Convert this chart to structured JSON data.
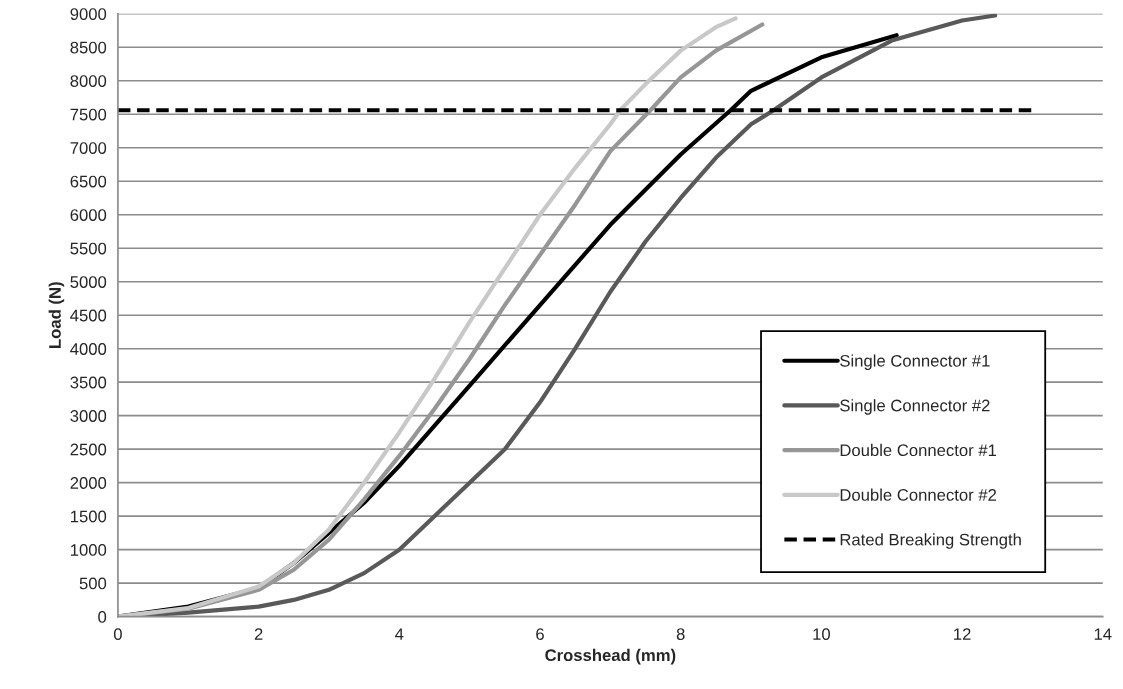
{
  "chart_data": {
    "type": "line",
    "xlabel": "Crosshead (mm)",
    "ylabel": "Load (N)",
    "xlim": [
      0,
      14
    ],
    "xticks": [
      0,
      2,
      4,
      6,
      8,
      10,
      12,
      14
    ],
    "ylim": [
      0,
      9000
    ],
    "yticks": [
      0,
      500,
      1000,
      1500,
      2000,
      2500,
      3000,
      3500,
      4000,
      4500,
      5000,
      5500,
      6000,
      6500,
      7000,
      7500,
      8000,
      8500,
      9000
    ],
    "grid": "y",
    "legend": "bottom right",
    "line_style": "solid",
    "marker": "none",
    "series": [
      {
        "name": "Single Connector #1",
        "color": "#000000",
        "x": [
          0,
          1,
          2,
          2.5,
          3,
          3.5,
          4,
          5,
          6,
          7,
          8,
          8.71,
          9,
          10,
          11.07
        ],
        "values": [
          0,
          150,
          430,
          800,
          1250,
          1700,
          2250,
          3450,
          4650,
          5850,
          6900,
          7560,
          7850,
          8350,
          8680
        ]
      },
      {
        "name": "Single Connector #2",
        "color": "#595959",
        "x": [
          0,
          1,
          2,
          2.5,
          3,
          3.5,
          4,
          4.5,
          5,
          5.5,
          6,
          6.5,
          7,
          7.5,
          8,
          8.5,
          9,
          9.32,
          10,
          11,
          12,
          12.47
        ],
        "values": [
          0,
          60,
          150,
          250,
          400,
          650,
          1000,
          1500,
          2000,
          2500,
          3200,
          4000,
          4850,
          5600,
          6250,
          6850,
          7350,
          7560,
          8050,
          8600,
          8900,
          8975
        ]
      },
      {
        "name": "Double Connector #1",
        "color": "#969696",
        "x": [
          0,
          1,
          2,
          2.5,
          3,
          3.5,
          4,
          4.5,
          5,
          5.5,
          6,
          6.5,
          7,
          7.57,
          8,
          8.5,
          9.16
        ],
        "values": [
          0,
          120,
          400,
          700,
          1150,
          1750,
          2400,
          3100,
          3850,
          4650,
          5400,
          6150,
          6950,
          7560,
          8050,
          8450,
          8840
        ]
      },
      {
        "name": "Double Connector #2",
        "color": "#c8c8c8",
        "x": [
          0,
          1,
          2,
          2.5,
          3,
          3.5,
          4,
          4.5,
          5,
          5.5,
          6,
          6.5,
          7,
          7.14,
          7.5,
          8,
          8.5,
          8.78
        ],
        "values": [
          0,
          130,
          450,
          800,
          1300,
          2000,
          2750,
          3550,
          4400,
          5200,
          6000,
          6700,
          7350,
          7560,
          7950,
          8450,
          8800,
          8930
        ]
      },
      {
        "name": "Rated Breaking Strength",
        "color": "#000000",
        "line_style": "dashed",
        "x": [
          0,
          13
        ],
        "values": [
          7560,
          7560
        ]
      }
    ]
  }
}
